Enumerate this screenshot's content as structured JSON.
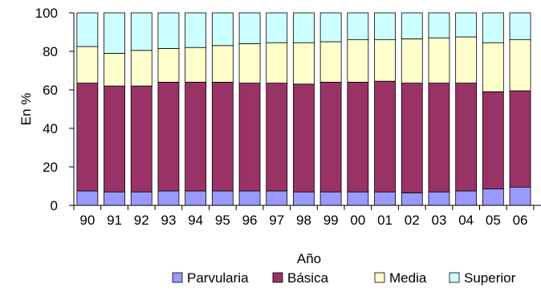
{
  "chart_data": {
    "type": "bar",
    "stacked": true,
    "percent": true,
    "xlabel": "Año",
    "ylabel": "En %",
    "ylim": [
      0,
      100
    ],
    "yticks": [
      0,
      20,
      40,
      60,
      80,
      100
    ],
    "grid": false,
    "legend_position": "bottom",
    "categories": [
      "90",
      "91",
      "92",
      "93",
      "94",
      "95",
      "96",
      "97",
      "98",
      "99",
      "00",
      "01",
      "02",
      "03",
      "04",
      "05",
      "06"
    ],
    "series": [
      {
        "name": "Parvularia",
        "color": "#9999ff",
        "values": [
          7.5,
          7,
          7,
          7.5,
          7.5,
          7.5,
          7.5,
          7.5,
          7,
          7,
          7,
          7,
          6.5,
          7,
          7.5,
          8.5,
          9.5
        ]
      },
      {
        "name": "Básica",
        "color": "#993366",
        "values": [
          56,
          55,
          55,
          56.5,
          56.5,
          56.5,
          56,
          56,
          56,
          57,
          57,
          57.5,
          57,
          56.5,
          56,
          50.5,
          50
        ]
      },
      {
        "name": "Media",
        "color": "#ffffcc",
        "values": [
          19,
          17,
          18.5,
          17.5,
          18,
          19,
          20.5,
          21,
          21.5,
          21,
          22,
          21.5,
          23,
          23.5,
          24,
          25.5,
          26.5
        ]
      },
      {
        "name": "Superior",
        "color": "#ccffff",
        "values": [
          17.5,
          21,
          19.5,
          18.5,
          18,
          17,
          16,
          15.5,
          15.5,
          15,
          14,
          14,
          13.5,
          13,
          12.5,
          15.5,
          14
        ]
      }
    ]
  }
}
